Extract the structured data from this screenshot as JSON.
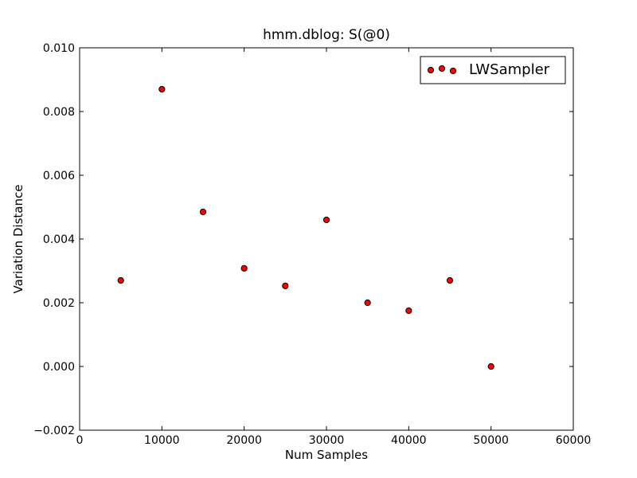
{
  "chart_data": {
    "type": "scatter",
    "title": "hmm.dblog: S(@0)",
    "xlabel": "Num Samples",
    "ylabel": "Variation Distance",
    "xlim": [
      0,
      60000
    ],
    "ylim": [
      -0.002,
      0.01
    ],
    "xticks": [
      0,
      10000,
      20000,
      30000,
      40000,
      50000,
      60000
    ],
    "xtick_labels": [
      "0",
      "10000",
      "20000",
      "30000",
      "40000",
      "50000",
      "60000"
    ],
    "yticks": [
      -0.002,
      0.0,
      0.002,
      0.004,
      0.006,
      0.008,
      0.01
    ],
    "ytick_labels": [
      "−0.002",
      "0.000",
      "0.002",
      "0.004",
      "0.006",
      "0.008",
      "0.010"
    ],
    "grid": false,
    "legend_position": "top-right",
    "series": [
      {
        "name": "LWSampler",
        "color": "#ff0000",
        "edge_color": "#000000",
        "marker": "circle",
        "x": [
          5000,
          10000,
          15000,
          20000,
          25000,
          30000,
          35000,
          40000,
          45000,
          50000
        ],
        "y": [
          0.0027,
          0.0087,
          0.00485,
          0.00308,
          0.00253,
          0.0046,
          0.002,
          0.00175,
          0.0027,
          0.0
        ]
      }
    ]
  }
}
